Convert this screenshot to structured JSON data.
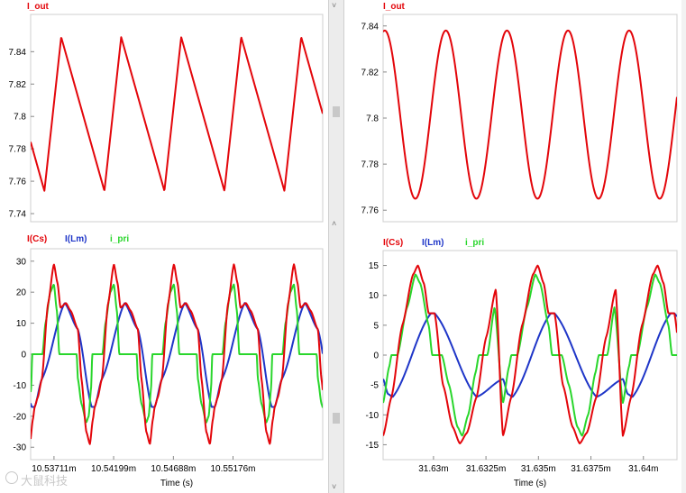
{
  "colors": {
    "frame": "#cfcfcf",
    "axis_text": "#000000",
    "I(Cs)": "#e3060b",
    "I(Lm)": "#1f36c8",
    "i_pri": "#29d62c"
  },
  "watermark": {
    "text": "大鼠科技"
  },
  "chart_data": [
    {
      "id": "left-top",
      "type": "line",
      "title": "I_out",
      "xlim": [
        10.5352,
        10.5591
      ],
      "ylim": [
        7.735,
        7.863
      ],
      "yticks": [
        7.74,
        7.76,
        7.78,
        7.8,
        7.82,
        7.84
      ],
      "ytick_labels": [
        "7.74",
        "7.76",
        "7.78",
        "7.8",
        "7.82",
        "7.84"
      ],
      "series": [
        {
          "name": "I_out",
          "color_key": "I(Cs)",
          "shape": "triangle",
          "period": 0.00491,
          "phase_peak": 10.5377,
          "rise_fraction": 0.28,
          "min": 7.754,
          "max": 7.849
        }
      ]
    },
    {
      "id": "left-bottom",
      "type": "line",
      "title": "",
      "legend": [
        "I(Cs)",
        "I(Lm)",
        "i_pri"
      ],
      "xlim": [
        10.5352,
        10.5591
      ],
      "ylim": [
        -34,
        34
      ],
      "yticks": [
        -30,
        -20,
        -10,
        0,
        10,
        20,
        30
      ],
      "ytick_labels": [
        "-30",
        "-20",
        "-10",
        "0",
        "10",
        "20",
        "30"
      ],
      "xticks": [
        10.53711,
        10.54199,
        10.54688,
        10.55176
      ],
      "xtick_labels": [
        "10.53711m",
        "10.54199m",
        "10.54688m",
        "10.55176m"
      ],
      "xlabel": "Time (s)",
      "series": [
        {
          "name": "I(Cs)",
          "period": 0.00491,
          "t0": 10.53553,
          "knots": [
            [
              0.0,
              -17
            ],
            [
              0.05,
              -14
            ],
            [
              0.12,
              -8
            ],
            [
              0.22,
              16
            ],
            [
              0.32,
              29
            ],
            [
              0.38,
              23
            ],
            [
              0.43,
              15
            ],
            [
              0.52,
              16.5
            ],
            [
              0.6,
              14
            ],
            [
              0.72,
              8
            ],
            [
              0.78,
              -8
            ],
            [
              0.86,
              -25
            ],
            [
              0.92,
              -29
            ],
            [
              0.97,
              -21
            ],
            [
              1.0,
              -17
            ]
          ]
        },
        {
          "name": "I(Lm)",
          "period": 0.00491,
          "t0": 10.53553,
          "knots": [
            [
              0.0,
              -17
            ],
            [
              0.12,
              -8
            ],
            [
              0.5,
              16.5
            ],
            [
              0.72,
              8
            ],
            [
              0.95,
              -17
            ],
            [
              1.0,
              -17
            ]
          ]
        },
        {
          "name": "i_pri",
          "period": 0.00491,
          "t0": 10.53553,
          "knots": [
            [
              0.0,
              0
            ],
            [
              0.13,
              0
            ],
            [
              0.18,
              10
            ],
            [
              0.26,
              20
            ],
            [
              0.32,
              22.5
            ],
            [
              0.37,
              14
            ],
            [
              0.41,
              0
            ],
            [
              0.7,
              0
            ],
            [
              0.72,
              -8
            ],
            [
              0.78,
              -16
            ],
            [
              0.86,
              -22
            ],
            [
              0.9,
              -20
            ],
            [
              0.94,
              -11
            ],
            [
              0.96,
              0
            ],
            [
              1.0,
              0
            ]
          ]
        }
      ]
    },
    {
      "id": "right-top",
      "type": "line",
      "title": "I_out",
      "xlim": [
        31.6276,
        31.6416
      ],
      "ylim": [
        7.755,
        7.845
      ],
      "yticks": [
        7.76,
        7.78,
        7.8,
        7.82,
        7.84
      ],
      "ytick_labels": [
        "7.76",
        "7.78",
        "7.8",
        "7.82",
        "7.84"
      ],
      "series": [
        {
          "name": "I_out",
          "color_key": "I(Cs)",
          "shape": "sine",
          "period": 0.00291,
          "phase_peak": 31.62768,
          "min": 7.765,
          "max": 7.838
        }
      ]
    },
    {
      "id": "right-bottom",
      "type": "line",
      "title": "",
      "legend": [
        "I(Cs)",
        "I(Lm)",
        "i_pri"
      ],
      "xlim": [
        31.6276,
        31.6416
      ],
      "ylim": [
        -17.5,
        17.5
      ],
      "yticks": [
        -15,
        -10,
        -5,
        0,
        5,
        10,
        15
      ],
      "ytick_labels": [
        "-15",
        "-10",
        "-5",
        "0",
        "5",
        "10",
        "15"
      ],
      "xticks": [
        31.63,
        31.6325,
        31.635,
        31.6375,
        31.64
      ],
      "xtick_labels": [
        "31.63m",
        "31.6325m",
        "31.635m",
        "31.6375m",
        "31.64m"
      ],
      "xlabel": "Time (s)",
      "series": [
        {
          "name": "I(Cs)",
          "period": 0.00571,
          "t0": 31.6276,
          "knots": [
            [
              0.0,
              -13.5
            ],
            [
              0.07,
              -7
            ],
            [
              0.16,
              5
            ],
            [
              0.25,
              13.5
            ],
            [
              0.29,
              15
            ],
            [
              0.34,
              12
            ],
            [
              0.38,
              7
            ],
            [
              0.43,
              7
            ],
            [
              0.5,
              -5
            ],
            [
              0.58,
              -12
            ],
            [
              0.64,
              -14.8
            ],
            [
              0.7,
              -13
            ],
            [
              0.78,
              -7
            ],
            [
              0.86,
              3
            ],
            [
              0.94,
              11
            ],
            [
              1.0,
              -13.5
            ]
          ]
        },
        {
          "name": "I(Lm)",
          "period": 0.00571,
          "t0": 31.6276,
          "knots": [
            [
              0.0,
              -4
            ],
            [
              0.04,
              -6.5
            ],
            [
              0.08,
              -7
            ],
            [
              0.4,
              7
            ],
            [
              0.43,
              7
            ],
            [
              0.78,
              -7
            ],
            [
              1.0,
              -4
            ]
          ]
        },
        {
          "name": "i_pri",
          "period": 0.00571,
          "t0": 31.6276,
          "knots": [
            [
              0.0,
              -8
            ],
            [
              0.05,
              -2
            ],
            [
              0.07,
              0
            ],
            [
              0.12,
              0
            ],
            [
              0.2,
              8
            ],
            [
              0.27,
              13.5
            ],
            [
              0.31,
              12
            ],
            [
              0.38,
              5
            ],
            [
              0.41,
              0
            ],
            [
              0.49,
              0
            ],
            [
              0.55,
              -5
            ],
            [
              0.62,
              -12
            ],
            [
              0.66,
              -13.5
            ],
            [
              0.71,
              -10
            ],
            [
              0.77,
              -3
            ],
            [
              0.8,
              0
            ],
            [
              0.87,
              0
            ],
            [
              0.93,
              8
            ],
            [
              1.0,
              -8
            ]
          ]
        }
      ]
    }
  ]
}
